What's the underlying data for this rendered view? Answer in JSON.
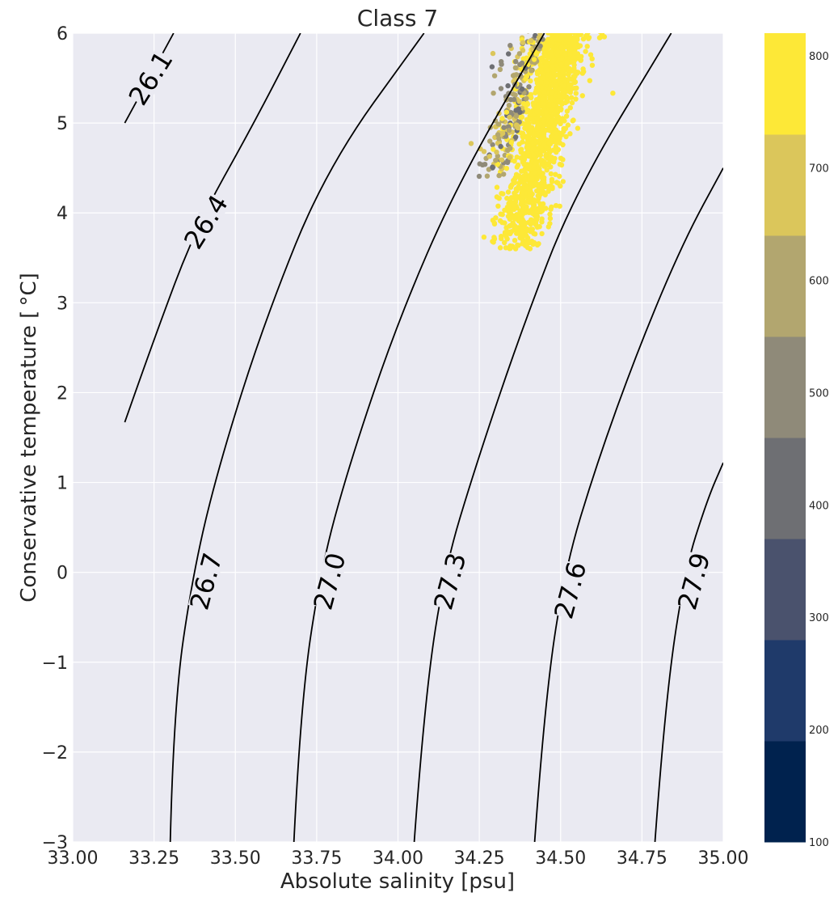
{
  "chart_data": {
    "type": "scatter",
    "title": "Class 7",
    "xlabel": "Absolute salinity [psu]",
    "ylabel": "Conservative temperature [$^\\circ$C]",
    "ylabel_display": "Conservative temperature [ °C]",
    "xlim": [
      33.0,
      35.0
    ],
    "ylim": [
      -3,
      6
    ],
    "xticks": [
      "33.00",
      "33.25",
      "33.50",
      "33.75",
      "34.00",
      "34.25",
      "34.50",
      "34.75",
      "35.00"
    ],
    "yticks": [
      "−3",
      "−2",
      "−1",
      "0",
      "1",
      "2",
      "3",
      "4",
      "5",
      "6"
    ],
    "grid": true,
    "background": "#eaeaf2",
    "contours": [
      {
        "label": "26.1",
        "points": [
          [
            33.16,
            5.0
          ],
          [
            33.22,
            5.4
          ],
          [
            33.31,
            6.0
          ]
        ]
      },
      {
        "label": "26.4",
        "points": [
          [
            33.16,
            1.67
          ],
          [
            33.25,
            2.6
          ],
          [
            33.38,
            3.85
          ],
          [
            33.55,
            4.95
          ],
          [
            33.7,
            6.0
          ]
        ]
      },
      {
        "label": "26.7",
        "points": [
          [
            33.3,
            -3.0
          ],
          [
            33.31,
            -1.5
          ],
          [
            33.37,
            0.0
          ],
          [
            33.45,
            1.2
          ],
          [
            33.59,
            2.8
          ],
          [
            33.78,
            4.5
          ],
          [
            34.08,
            6.0
          ]
        ]
      },
      {
        "label": "27.0",
        "points": [
          [
            33.68,
            -3.0
          ],
          [
            33.7,
            -1.5
          ],
          [
            33.76,
            0.0
          ],
          [
            33.85,
            1.2
          ],
          [
            34.0,
            2.8
          ],
          [
            34.18,
            4.3
          ],
          [
            34.45,
            6.0
          ]
        ]
      },
      {
        "label": "27.3",
        "points": [
          [
            34.05,
            -3.0
          ],
          [
            34.08,
            -1.5
          ],
          [
            34.14,
            0.0
          ],
          [
            34.24,
            1.2
          ],
          [
            34.38,
            2.7
          ],
          [
            34.54,
            4.2
          ],
          [
            34.84,
            6.0
          ]
        ]
      },
      {
        "label": "27.6",
        "points": [
          [
            34.42,
            -3.0
          ],
          [
            34.45,
            -1.5
          ],
          [
            34.51,
            0.0
          ],
          [
            34.61,
            1.2
          ],
          [
            34.74,
            2.5
          ],
          [
            34.88,
            3.7
          ],
          [
            35.0,
            4.5
          ]
        ]
      },
      {
        "label": "27.9",
        "points": [
          [
            34.79,
            -3.0
          ],
          [
            34.82,
            -1.5
          ],
          [
            34.88,
            0.0
          ],
          [
            34.95,
            0.8
          ],
          [
            35.0,
            1.22
          ]
        ]
      }
    ],
    "contour_label_positions": [
      {
        "label": "26.1",
        "x": 33.24,
        "y": 5.5,
        "angle": -58
      },
      {
        "label": "26.4",
        "x": 33.41,
        "y": 3.9,
        "angle": -58
      },
      {
        "label": "26.7",
        "x": 33.41,
        "y": -0.1,
        "angle": -75
      },
      {
        "label": "27.0",
        "x": 33.79,
        "y": -0.1,
        "angle": -75
      },
      {
        "label": "27.3",
        "x": 34.16,
        "y": -0.1,
        "angle": -75
      },
      {
        "label": "27.6",
        "x": 34.53,
        "y": -0.2,
        "angle": -75
      },
      {
        "label": "27.9",
        "x": 34.91,
        "y": -0.1,
        "angle": -75
      }
    ],
    "scatter_cloud": {
      "sa_range": [
        34.22,
        34.62
      ],
      "ct_range": [
        3.5,
        6.0
      ],
      "dominant_value": 820
    },
    "colorbar": {
      "vmin": 100,
      "vmax": 820,
      "ticks": [
        "100",
        "200",
        "300",
        "400",
        "500",
        "600",
        "700",
        "800"
      ],
      "bins": [
        {
          "from": 100,
          "to": 190,
          "color": "#00224e"
        },
        {
          "from": 190,
          "to": 280,
          "color": "#1f3a6a"
        },
        {
          "from": 280,
          "to": 370,
          "color": "#4a526d"
        },
        {
          "from": 370,
          "to": 460,
          "color": "#6e6f73"
        },
        {
          "from": 460,
          "to": 550,
          "color": "#8f8a79"
        },
        {
          "from": 550,
          "to": 640,
          "color": "#b2a66f"
        },
        {
          "from": 640,
          "to": 730,
          "color": "#dbc65b"
        },
        {
          "from": 730,
          "to": 820,
          "color": "#fde837"
        }
      ]
    }
  }
}
